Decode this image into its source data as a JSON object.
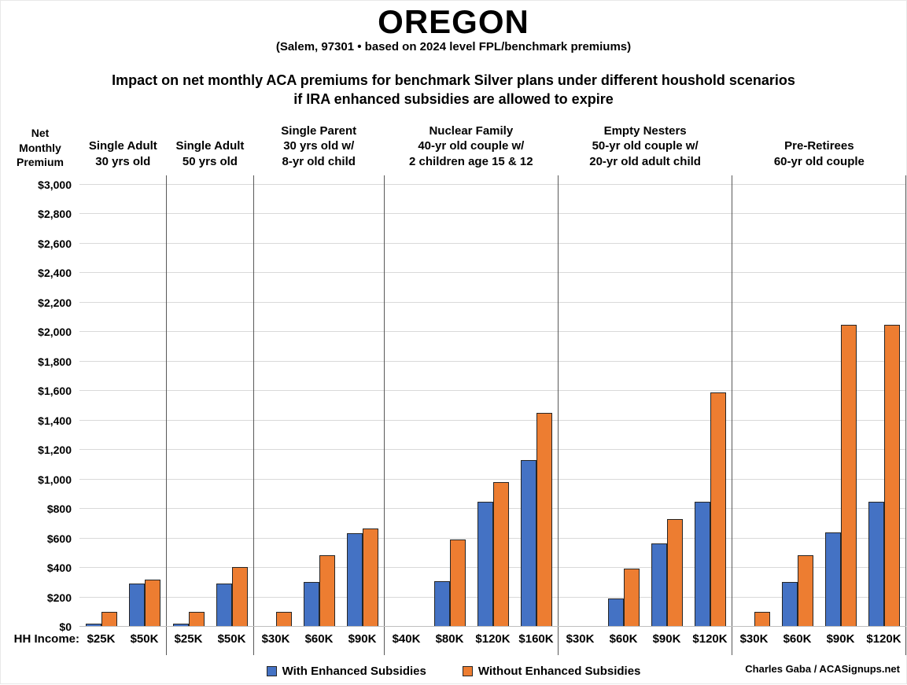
{
  "title": "OREGON",
  "subtitle": "(Salem, 97301 • based on 2024 level FPL/benchmark premiums)",
  "description_line1": "Impact on net monthly ACA premiums for benchmark Silver plans under different houshold scenarios",
  "description_line2": "if IRA enhanced subsidies are allowed to expire",
  "y_axis_title": "Net Monthly Premium",
  "x_axis_label": "HH Income:",
  "credit": "Charles Gaba / ACASignups.net",
  "legend": [
    {
      "label": "With Enhanced Subsidies",
      "color": "#4472c4"
    },
    {
      "label": "Without Enhanced Subsidies",
      "color": "#ed7d31"
    }
  ],
  "colors": {
    "with_enhanced": "#4472c4",
    "without_enhanced": "#ed7d31",
    "bar_outline": "#262626",
    "gridline": "#d9d9d9",
    "group_divider": "#595959"
  },
  "chart_data": {
    "type": "bar",
    "title": "OREGON — Impact on net monthly ACA premiums for benchmark Silver plans if IRA enhanced subsidies expire",
    "ylabel": "Net Monthly Premium",
    "xlabel": "HH Income:",
    "ylim": [
      0,
      3000
    ],
    "ytick_step": 200,
    "ytick_labels": [
      "$0",
      "$200",
      "$400",
      "$600",
      "$800",
      "$1,000",
      "$1,200",
      "$1,400",
      "$1,600",
      "$1,800",
      "$2,000",
      "$2,200",
      "$2,400",
      "$2,600",
      "$2,800",
      "$3,000"
    ],
    "grid": true,
    "legend_position": "bottom",
    "series_names": [
      "With Enhanced Subsidies",
      "Without Enhanced Subsidies"
    ],
    "groups": [
      {
        "header_lines": [
          "Single Adult",
          "30 yrs old"
        ],
        "categories": [
          "$25K",
          "$50K"
        ],
        "with_enhanced": [
          20,
          295
        ],
        "without_enhanced": [
          100,
          320
        ]
      },
      {
        "header_lines": [
          "Single Adult",
          "50 yrs old"
        ],
        "categories": [
          "$25K",
          "$50K"
        ],
        "with_enhanced": [
          20,
          295
        ],
        "without_enhanced": [
          100,
          405
        ]
      },
      {
        "header_lines": [
          "Single Parent",
          "30 yrs old w/",
          "8-yr old child"
        ],
        "categories": [
          "$30K",
          "$60K",
          "$90K"
        ],
        "with_enhanced": [
          8,
          305,
          635
        ],
        "without_enhanced": [
          100,
          485,
          665
        ]
      },
      {
        "header_lines": [
          "Nuclear Family",
          "40-yr old couple w/",
          "2 children age 15 & 12"
        ],
        "categories": [
          "$40K",
          "$80K",
          "$120K",
          "$160K"
        ],
        "with_enhanced": [
          0,
          310,
          850,
          1130
        ],
        "without_enhanced": [
          0,
          590,
          980,
          1450
        ]
      },
      {
        "header_lines": [
          "Empty Nesters",
          "50-yr old couple w/",
          "20-yr old adult child"
        ],
        "categories": [
          "$30K",
          "$60K",
          "$90K",
          "$120K"
        ],
        "with_enhanced": [
          0,
          190,
          565,
          850
        ],
        "without_enhanced": [
          0,
          395,
          730,
          1590
        ]
      },
      {
        "header_lines": [
          "Pre-Retirees",
          "60-yr old couple"
        ],
        "categories": [
          "$30K",
          "$60K",
          "$90K",
          "$120K"
        ],
        "with_enhanced": [
          8,
          305,
          640,
          850
        ],
        "without_enhanced": [
          100,
          485,
          2050,
          2050
        ]
      }
    ]
  }
}
